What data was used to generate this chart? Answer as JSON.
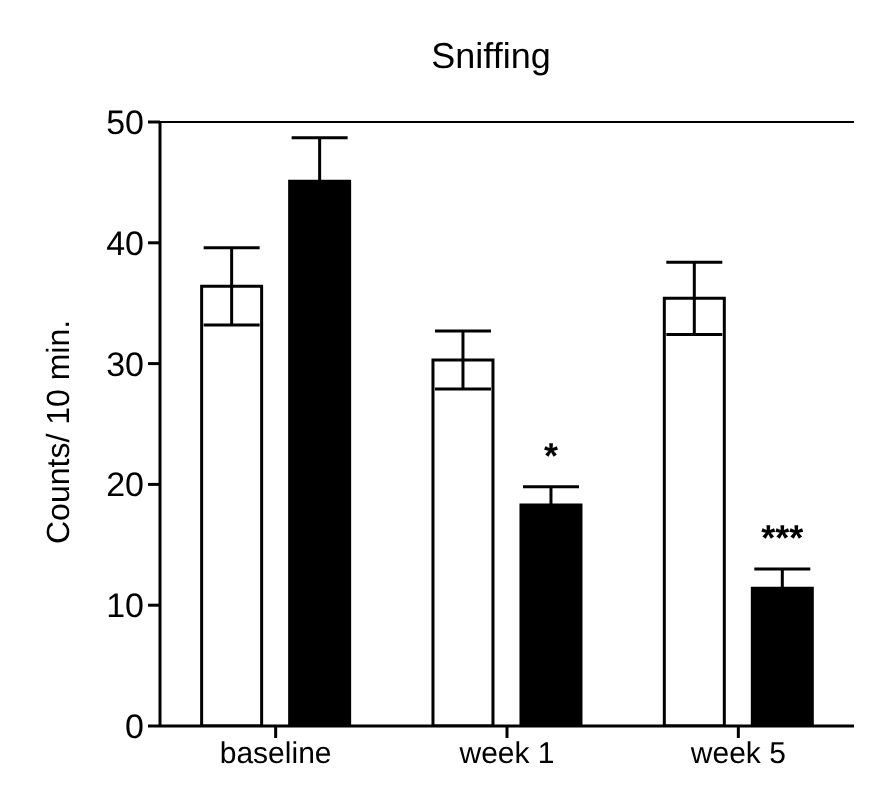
{
  "chart_data": {
    "type": "bar",
    "title": "Sniffing",
    "ylabel": "Counts/ 10 min.",
    "categories": [
      "baseline",
      "week 1",
      "week 5"
    ],
    "series": [
      {
        "color": "#ffffff",
        "values": [
          36.4,
          30.3,
          35.4
        ],
        "errors": [
          3.2,
          2.4,
          3.0
        ]
      },
      {
        "color": "#000000",
        "values": [
          45.1,
          18.3,
          11.4
        ],
        "errors": [
          3.6,
          1.5,
          1.6
        ],
        "value_labels": [
          null,
          "*",
          "***"
        ]
      }
    ],
    "ylim": [
      0,
      50
    ],
    "yticks": [
      0,
      10,
      20,
      30,
      40,
      50
    ],
    "grid": false,
    "legend": false
  }
}
